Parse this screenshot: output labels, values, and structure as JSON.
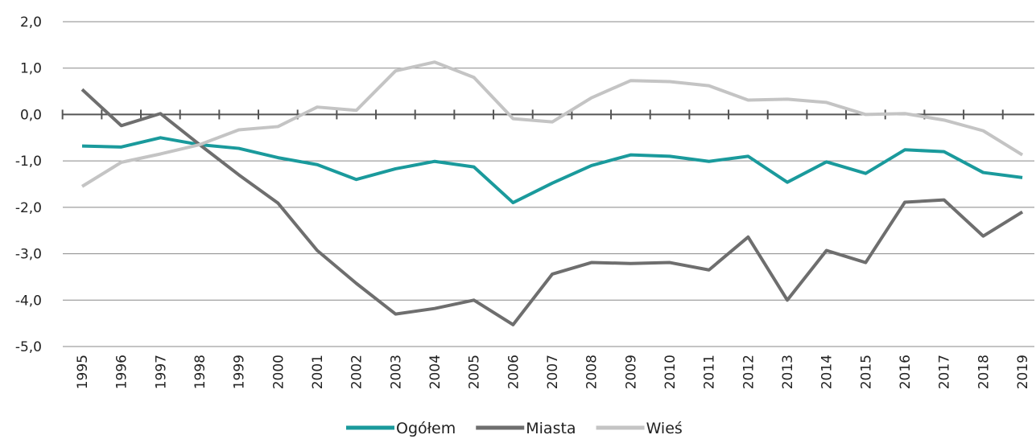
{
  "chart_data": {
    "type": "line",
    "categories": [
      "1995",
      "1996",
      "1997",
      "1998",
      "1999",
      "2000",
      "2001",
      "2002",
      "2003",
      "2004",
      "2005",
      "2006",
      "2007",
      "2008",
      "2009",
      "2010",
      "2011",
      "2012",
      "2013",
      "2014",
      "2015",
      "2016",
      "2017",
      "2018",
      "2019"
    ],
    "series": [
      {
        "name": "Ogółem",
        "color": "#1a9a9c",
        "values": [
          -0.68,
          -0.7,
          -0.5,
          -0.65,
          -0.73,
          -0.93,
          -1.08,
          -1.4,
          -1.17,
          -1.01,
          -1.13,
          -1.9,
          -1.48,
          -1.1,
          -0.87,
          -0.9,
          -1.01,
          -0.9,
          -1.46,
          -1.02,
          -1.27,
          -0.76,
          -0.8,
          -1.25,
          -1.36
        ]
      },
      {
        "name": "Miasta",
        "color": "#6e6e6e",
        "values": [
          0.54,
          -0.24,
          0.02,
          -0.65,
          -1.3,
          -1.91,
          -2.93,
          -3.64,
          -4.3,
          -4.18,
          -4.0,
          -4.53,
          -3.44,
          -3.19,
          -3.21,
          -3.19,
          -3.35,
          -2.64,
          -4.0,
          -2.93,
          -3.19,
          -1.89,
          -1.84,
          -2.62,
          -2.1
        ]
      },
      {
        "name": "Wieś",
        "color": "#c4c4c4",
        "values": [
          -1.55,
          -1.03,
          -0.85,
          -0.65,
          -0.33,
          -0.26,
          0.16,
          0.09,
          0.94,
          1.13,
          0.8,
          -0.09,
          -0.16,
          0.36,
          0.73,
          0.71,
          0.62,
          0.31,
          0.33,
          0.26,
          0.0,
          0.02,
          -0.12,
          -0.35,
          -0.87
        ]
      }
    ],
    "ylim": [
      -5,
      2
    ],
    "yticks": [
      {
        "value": -5,
        "label": "-5,0"
      },
      {
        "value": -4,
        "label": "-4,0"
      },
      {
        "value": -3,
        "label": "-3,0"
      },
      {
        "value": -2,
        "label": "-2,0"
      },
      {
        "value": -1,
        "label": "-1,0"
      },
      {
        "value": 0,
        "label": "0,0"
      },
      {
        "value": 1,
        "label": "1,0"
      },
      {
        "value": 2,
        "label": "2,0"
      }
    ],
    "grid": true,
    "legend": "bottom"
  }
}
